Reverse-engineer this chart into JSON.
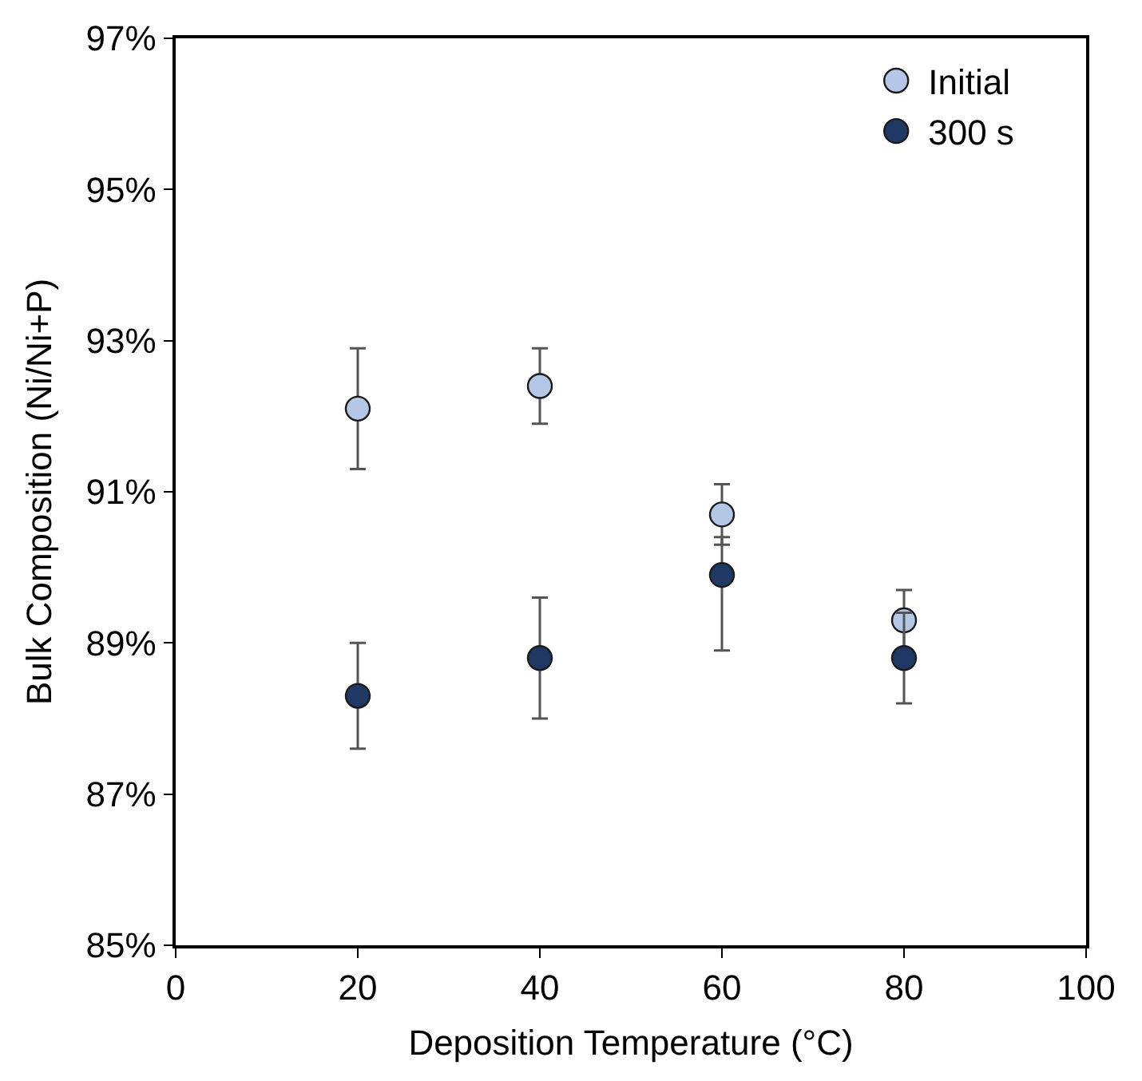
{
  "chart_data": {
    "type": "scatter",
    "xlabel": "Deposition Temperature (°C)",
    "ylabel": "Bulk Composition (Ni/Ni+P)",
    "x": [
      20,
      40,
      60,
      80
    ],
    "series": [
      {
        "name": "Initial",
        "color": "#b4c7e7",
        "values": [
          92.1,
          92.4,
          90.7,
          89.3
        ],
        "errors": [
          0.8,
          0.5,
          0.4,
          0.4
        ]
      },
      {
        "name": "300 s",
        "color": "#203864",
        "values": [
          88.3,
          88.8,
          89.9,
          88.8
        ],
        "errors": [
          0.7,
          0.8,
          [
            88.9,
            90.4
          ],
          0.6
        ]
      }
    ],
    "xlim": [
      0,
      100
    ],
    "xticks": [
      0,
      20,
      40,
      60,
      80,
      100
    ],
    "ylim": [
      85,
      97
    ],
    "yticks": [
      {
        "value": 85,
        "label": "85%"
      },
      {
        "value": 87,
        "label": "87%"
      },
      {
        "value": 89,
        "label": "89%"
      },
      {
        "value": 91,
        "label": "91%"
      },
      {
        "value": 93,
        "label": "93%"
      },
      {
        "value": 95,
        "label": "95%"
      },
      {
        "value": 97,
        "label": "97%"
      }
    ],
    "legend": "top right",
    "marker": "circle"
  }
}
